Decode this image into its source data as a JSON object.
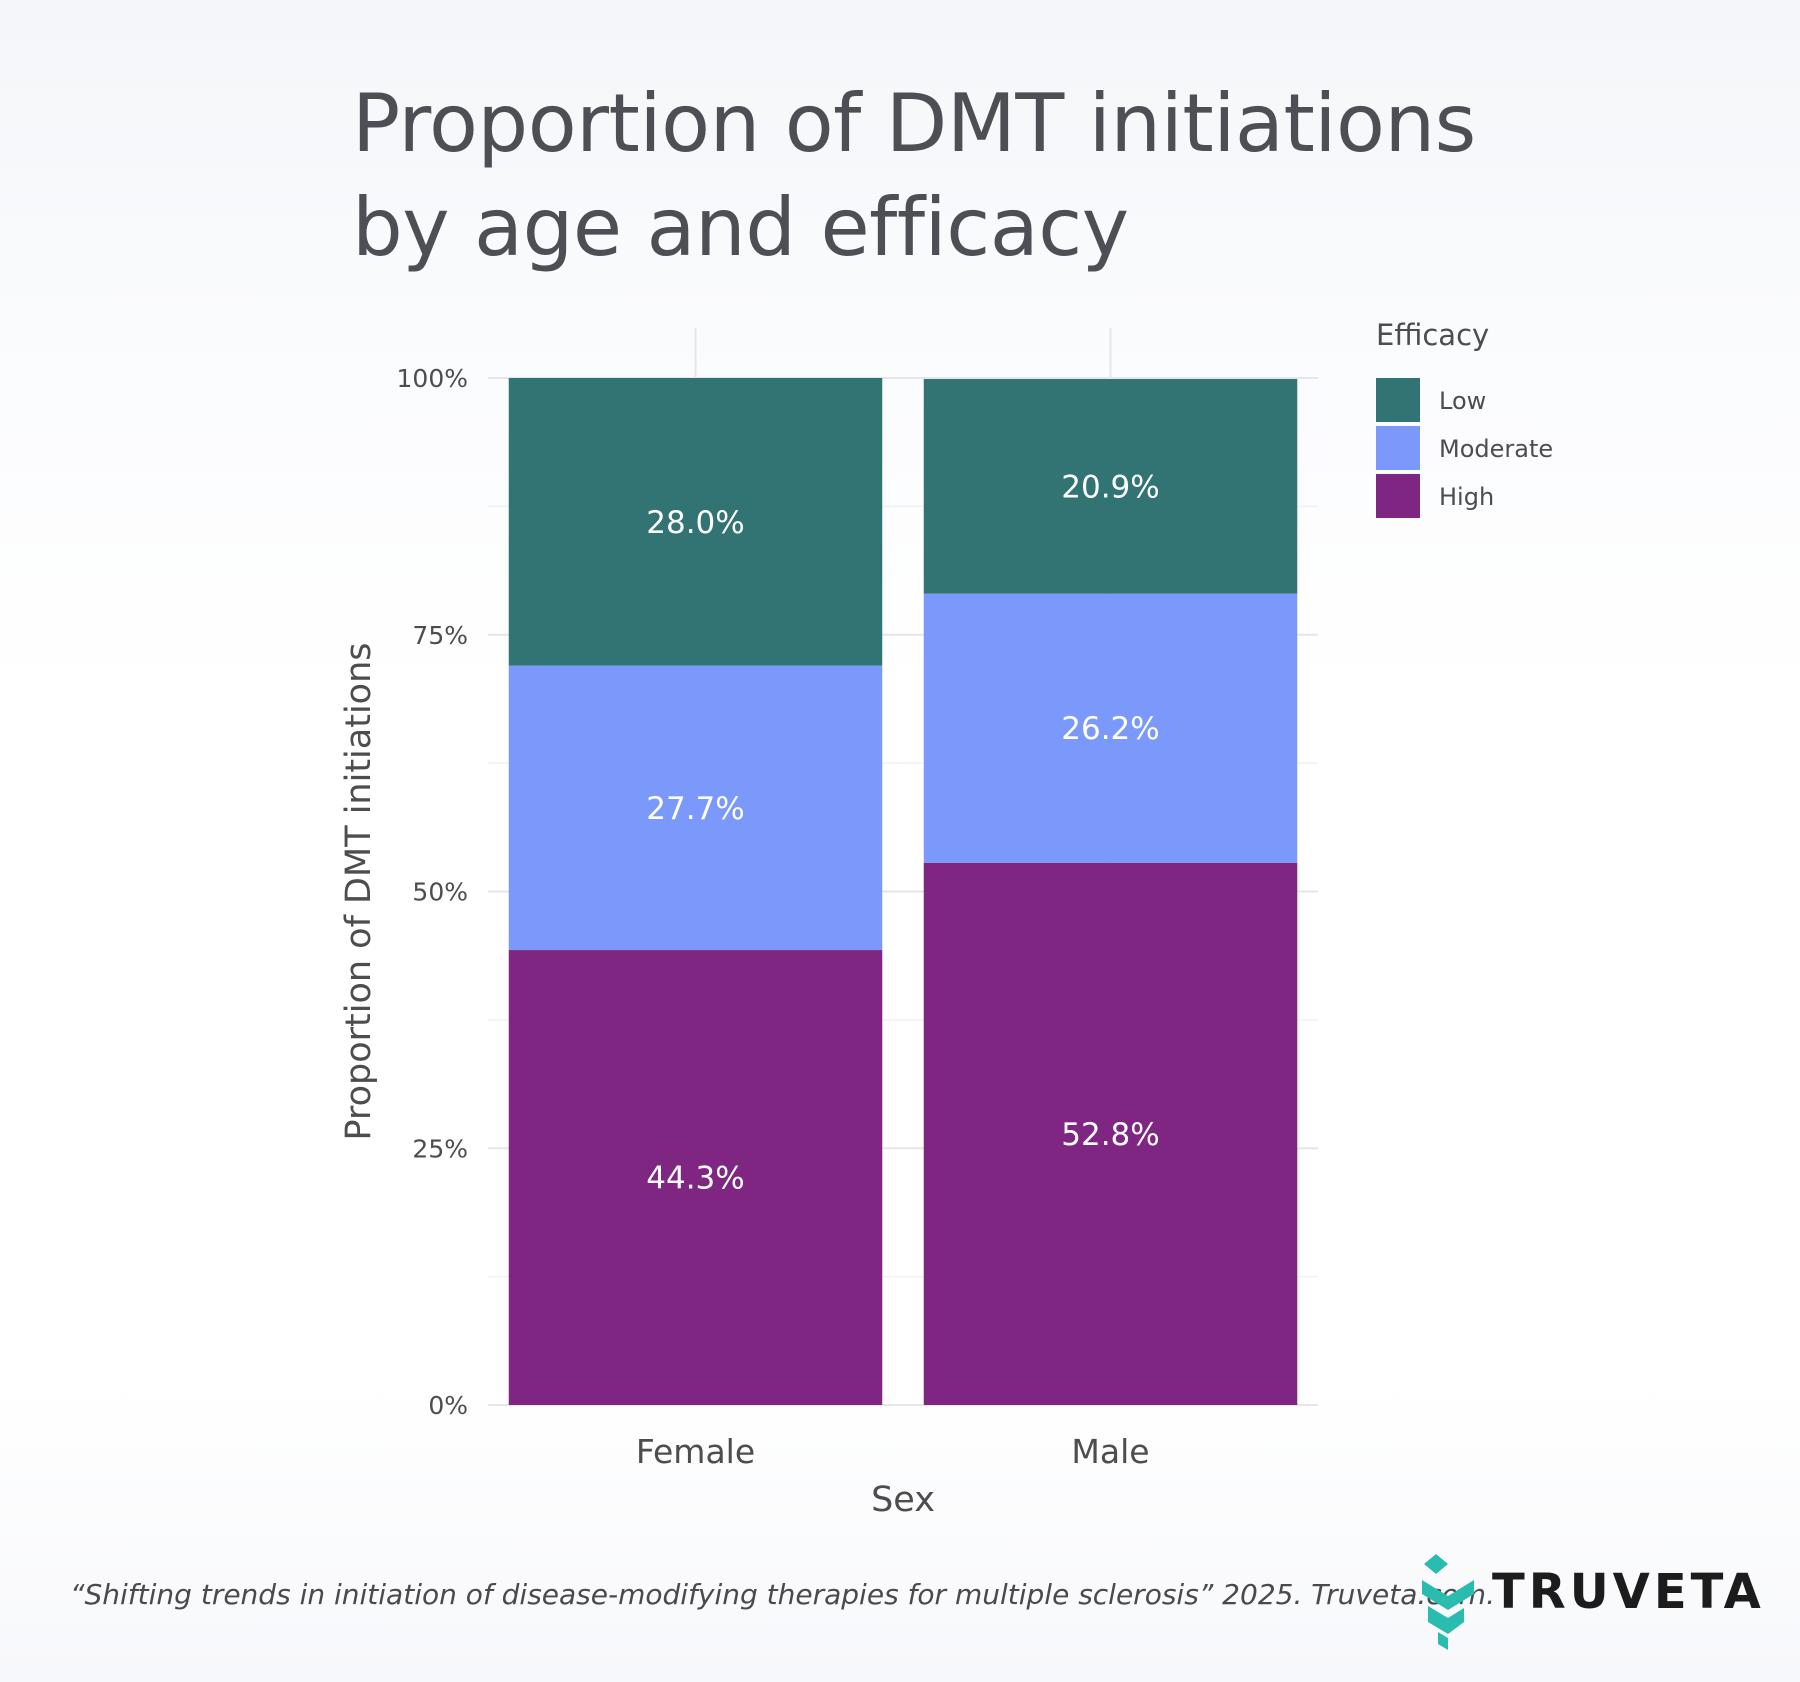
{
  "title": "Proportion of DMT initiations\nby age and efficacy",
  "chart_data": {
    "type": "bar",
    "stacked": true,
    "categories": [
      "Female",
      "Male"
    ],
    "series": [
      {
        "name": "High",
        "color": "#7e2682",
        "values": [
          44.3,
          52.8
        ],
        "labels": [
          "44.3%",
          "52.8%"
        ]
      },
      {
        "name": "Moderate",
        "color": "#7a99fb",
        "values": [
          27.7,
          26.2
        ],
        "labels": [
          "27.7%",
          "26.2%"
        ]
      },
      {
        "name": "Low",
        "color": "#327373",
        "values": [
          28.0,
          20.9
        ],
        "labels": [
          "28.0%",
          "20.9%"
        ]
      }
    ],
    "xlabel": "Sex",
    "ylabel": "Proportion of DMT initiations",
    "ylim": [
      0,
      100
    ],
    "yticks": [
      0,
      25,
      50,
      75,
      100
    ],
    "ytick_labels": [
      "0%",
      "25%",
      "50%",
      "75%",
      "100%"
    ],
    "legend": {
      "title": "Efficacy",
      "position": "top-right",
      "items": [
        {
          "label": "Low",
          "color": "#327373"
        },
        {
          "label": "Moderate",
          "color": "#7a99fb"
        },
        {
          "label": "High",
          "color": "#7e2682"
        }
      ]
    }
  },
  "footer": {
    "caption": "“Shifting trends in initiation of disease-modifying therapies for multiple sclerosis” 2025. Truveta.com."
  },
  "brand": {
    "name": "TRUVETA",
    "mark_color": "#2bbcb0"
  }
}
